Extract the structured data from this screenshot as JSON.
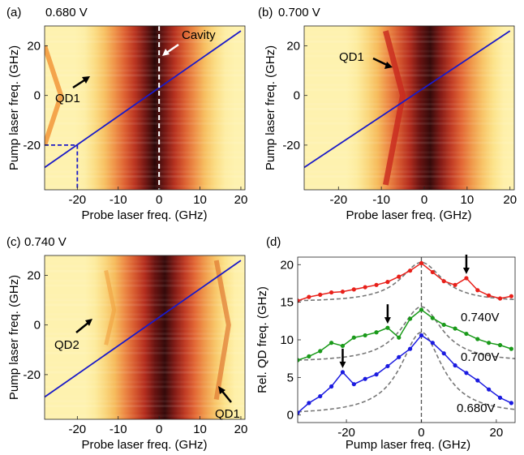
{
  "chart_data": [
    {
      "panel": "(a)",
      "type": "heatmap",
      "title": "0.680 V",
      "xlabel": "Probe laser freq. (GHz)",
      "ylabel": "Pump laser freq. (GHz)",
      "xlim": [
        -28,
        21
      ],
      "ylim": [
        -38,
        28
      ],
      "xticks": [
        -20,
        -10,
        0,
        10,
        20
      ],
      "yticks": [
        -20,
        0,
        20
      ],
      "cavity_center": -1,
      "diagonal_line": [
        [
          -28,
          -29
        ],
        [
          20,
          26
        ]
      ],
      "qd_trace": [
        [
          -28,
          -20
        ],
        [
          -24,
          0
        ],
        [
          -28,
          20
        ]
      ],
      "cavity_marker_x": 0,
      "dashed_crosshair": {
        "x": -20,
        "y": -20
      },
      "labels": {
        "cavity": "Cavity",
        "qd": "QD1"
      },
      "colors": {
        "line": "#1a1ac8",
        "marker": "#1a1ac8"
      }
    },
    {
      "panel": "(b)",
      "type": "heatmap",
      "title": "0.700 V",
      "xlabel": "Probe laser freq. (GHz)",
      "ylabel": "Pump laser freq. (GHz)",
      "xlim": [
        -28,
        21
      ],
      "ylim": [
        -38,
        28
      ],
      "xticks": [
        -20,
        -10,
        0,
        10,
        20
      ],
      "yticks": [
        -20,
        0,
        20
      ],
      "cavity_center": 1,
      "diagonal_line": [
        [
          -28,
          -29
        ],
        [
          20,
          26
        ]
      ],
      "qd_trace": [
        [
          -9,
          -36
        ],
        [
          -5,
          0
        ],
        [
          -9,
          26
        ]
      ],
      "labels": {
        "qd": "QD1"
      },
      "colors": {
        "line": "#1a1ac8"
      }
    },
    {
      "panel": "(c)",
      "type": "heatmap",
      "title": "0.740 V",
      "xlabel": "Probe laser freq. (GHz)",
      "ylabel": "Pump laser freq. (GHz)",
      "xlim": [
        -28,
        21
      ],
      "ylim": [
        -38,
        28
      ],
      "xticks": [
        -20,
        -10,
        0,
        10,
        20
      ],
      "yticks": [
        -20,
        0,
        20
      ],
      "cavity_center": 1,
      "diagonal_line": [
        [
          -28,
          -29
        ],
        [
          20,
          26
        ]
      ],
      "qd_trace": [
        [
          -13,
          22
        ],
        [
          -11,
          6
        ],
        [
          -13,
          -8
        ]
      ],
      "qd_trace_2": [
        [
          14,
          26
        ],
        [
          17,
          0
        ],
        [
          14,
          -30
        ]
      ],
      "labels": {
        "qd_a": "QD2",
        "qd_b": "QD1"
      },
      "colors": {
        "line": "#1a1ac8"
      }
    },
    {
      "panel": "(d)",
      "type": "line",
      "xlabel": "Pump laser freq. (GHz)",
      "ylabel": "Rel. QD freq. (GHz)",
      "xlim": [
        -33,
        25
      ],
      "ylim": [
        -1,
        21
      ],
      "xticks": [
        -20,
        0,
        20
      ],
      "yticks": [
        0,
        5,
        10,
        15,
        20
      ],
      "vline_x": 0,
      "series": [
        {
          "name": "0.740V",
          "color": "#e8201a",
          "x": [
            -33,
            -30,
            -27,
            -24,
            -21,
            -18,
            -15,
            -12,
            -9,
            -6,
            -3,
            0,
            3,
            6,
            9,
            12,
            15,
            18,
            21,
            24
          ],
          "y": [
            15.2,
            15.7,
            16.0,
            16.3,
            16.4,
            16.7,
            17.0,
            17.3,
            17.7,
            18.4,
            19.2,
            20.2,
            19.0,
            17.8,
            17.3,
            18.2,
            16.6,
            15.9,
            15.5,
            15.8
          ]
        },
        {
          "name": "0.700V",
          "color": "#1a9a1a",
          "x": [
            -33,
            -30,
            -27,
            -24,
            -21,
            -18,
            -15,
            -12,
            -9,
            -6,
            -3,
            0,
            3,
            6,
            9,
            12,
            15,
            18,
            21,
            24
          ],
          "y": [
            7.3,
            7.8,
            8.5,
            9.6,
            9.2,
            10.3,
            10.6,
            11.0,
            11.6,
            10.3,
            12.8,
            14.0,
            12.9,
            12.0,
            11.5,
            10.8,
            10.1,
            9.6,
            9.3,
            8.8
          ]
        },
        {
          "name": "0.680V",
          "color": "#1a1ae0",
          "x": [
            -33,
            -30,
            -27,
            -24,
            -21,
            -18,
            -15,
            -12,
            -9,
            -6,
            -3,
            0,
            3,
            6,
            9,
            12,
            15,
            18,
            21,
            24
          ],
          "y": [
            0.3,
            1.6,
            2.5,
            3.8,
            5.7,
            4.1,
            4.8,
            5.4,
            6.5,
            7.7,
            8.8,
            10.6,
            9.6,
            8.2,
            6.6,
            5.6,
            4.6,
            3.4,
            2.3,
            1.6
          ]
        }
      ],
      "fits": [
        {
          "peak": 20.3,
          "base": 15.0,
          "width": 9
        },
        {
          "peak": 14.4,
          "base": 7.0,
          "width": 9
        },
        {
          "peak": 11.0,
          "base": 0.0,
          "width": 9
        }
      ],
      "arrows_at": [
        [
          -21,
          5.7
        ],
        [
          -9,
          11.6
        ],
        [
          12,
          18.2
        ]
      ],
      "series_labels": [
        "0.740V",
        "0.700V",
        "0.680V"
      ]
    }
  ]
}
